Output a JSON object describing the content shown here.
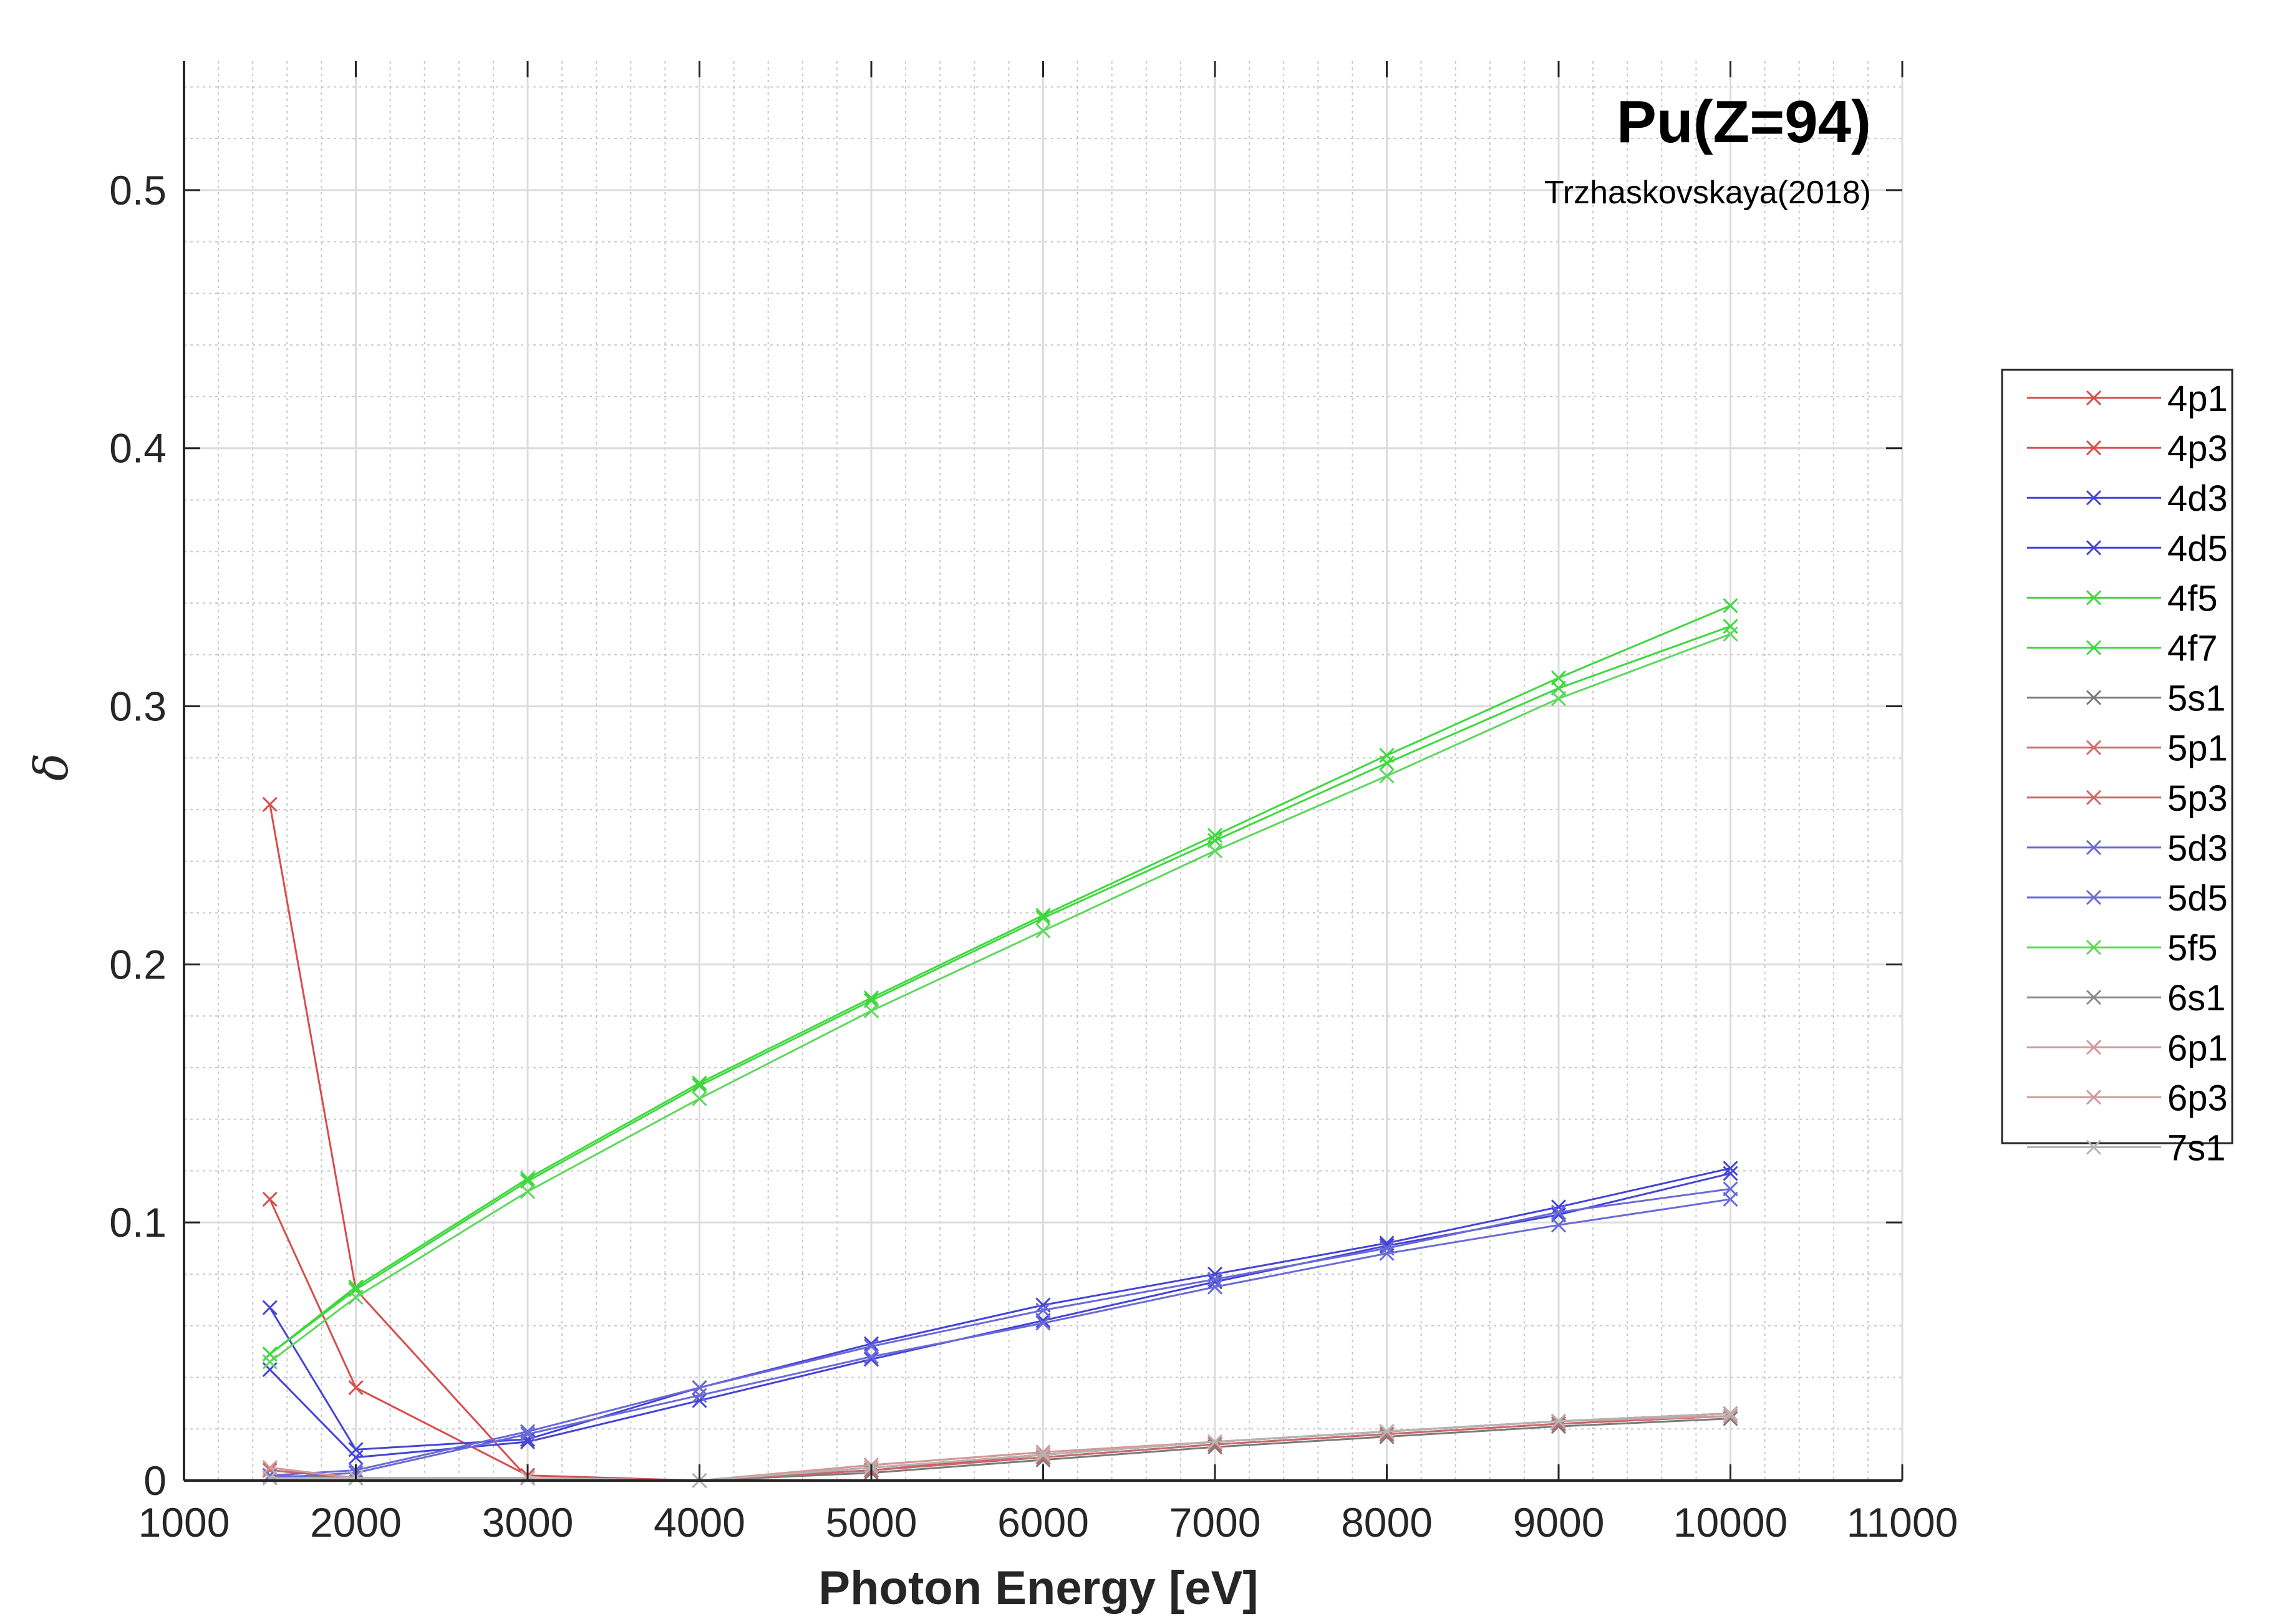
{
  "chart_data": {
    "type": "line",
    "title": "Pu(Z=94)",
    "subtitle": "Trzhaskovskaya(2018)",
    "xlabel": "Photon Energy [eV]",
    "ylabel": "δ",
    "xlim": [
      1000,
      11000
    ],
    "ylim": [
      0,
      0.55
    ],
    "xticks": [
      1000,
      2000,
      3000,
      4000,
      5000,
      6000,
      7000,
      8000,
      9000,
      10000,
      11000
    ],
    "yticks": [
      0,
      0.1,
      0.2,
      0.3,
      0.4,
      0.5
    ],
    "xtick_labels": [
      "1000",
      "2000",
      "3000",
      "4000",
      "5000",
      "6000",
      "7000",
      "8000",
      "9000",
      "10000",
      "11000"
    ],
    "ytick_labels": [
      "0",
      "0.1",
      "0.2",
      "0.3",
      "0.4",
      "0.5"
    ],
    "grid": true,
    "legend_position": "outside-right",
    "marker": "x",
    "x": [
      1500,
      2000,
      3000,
      4000,
      5000,
      6000,
      7000,
      8000,
      9000,
      10000
    ],
    "series": [
      {
        "name": "4p1",
        "color": "#d94c4c",
        "values": [
          0.262,
          0.074,
          0.001,
          0.0,
          0.004,
          0.01,
          0.015,
          0.019,
          0.023,
          0.026
        ]
      },
      {
        "name": "4p3",
        "color": "#d94c4c",
        "values": [
          0.109,
          0.036,
          0.002,
          0.0,
          0.005,
          0.01,
          0.015,
          0.019,
          0.023,
          0.026
        ]
      },
      {
        "name": "4d3",
        "color": "#4444d8",
        "values": [
          0.067,
          0.012,
          0.016,
          0.036,
          0.053,
          0.068,
          0.08,
          0.092,
          0.106,
          0.121
        ]
      },
      {
        "name": "4d5",
        "color": "#4444d8",
        "values": [
          0.043,
          0.009,
          0.015,
          0.031,
          0.047,
          0.062,
          0.077,
          0.091,
          0.103,
          0.119
        ]
      },
      {
        "name": "4f5",
        "color": "#3ed83e",
        "values": [
          0.049,
          0.075,
          0.117,
          0.154,
          0.187,
          0.219,
          0.25,
          0.281,
          0.311,
          0.339
        ]
      },
      {
        "name": "4f7",
        "color": "#3ed83e",
        "values": [
          0.049,
          0.074,
          0.116,
          0.153,
          0.186,
          0.218,
          0.248,
          0.278,
          0.307,
          0.331
        ]
      },
      {
        "name": "5s1",
        "color": "#7a7a7a",
        "values": [
          0.002,
          0.001,
          0.001,
          0.0,
          0.003,
          0.008,
          0.013,
          0.017,
          0.021,
          0.024
        ]
      },
      {
        "name": "5p1",
        "color": "#d66a6a",
        "values": [
          0.004,
          0.001,
          0.001,
          0.0,
          0.004,
          0.009,
          0.014,
          0.018,
          0.022,
          0.025
        ]
      },
      {
        "name": "5p3",
        "color": "#c86a6a",
        "values": [
          0.004,
          0.001,
          0.001,
          0.0,
          0.004,
          0.009,
          0.014,
          0.018,
          0.022,
          0.025
        ]
      },
      {
        "name": "5d3",
        "color": "#6a6ad8",
        "values": [
          0.002,
          0.004,
          0.019,
          0.036,
          0.052,
          0.066,
          0.078,
          0.09,
          0.104,
          0.113
        ]
      },
      {
        "name": "5d5",
        "color": "#6a6ad8",
        "values": [
          0.001,
          0.003,
          0.018,
          0.033,
          0.048,
          0.061,
          0.075,
          0.088,
          0.099,
          0.109
        ]
      },
      {
        "name": "5f5",
        "color": "#5cd85c",
        "values": [
          0.046,
          0.071,
          0.112,
          0.148,
          0.182,
          0.213,
          0.244,
          0.273,
          0.303,
          0.328
        ]
      },
      {
        "name": "6s1",
        "color": "#8a8a8a",
        "values": [
          0.001,
          0.001,
          0.001,
          0.0,
          0.005,
          0.01,
          0.015,
          0.019,
          0.023,
          0.026
        ]
      },
      {
        "name": "6p1",
        "color": "#d49898",
        "values": [
          0.005,
          0.001,
          0.001,
          0.0,
          0.006,
          0.011,
          0.015,
          0.019,
          0.023,
          0.025
        ]
      },
      {
        "name": "6p3",
        "color": "#d49898",
        "values": [
          0.005,
          0.001,
          0.001,
          0.0,
          0.006,
          0.011,
          0.015,
          0.019,
          0.023,
          0.025
        ]
      },
      {
        "name": "7s1",
        "color": "#b4b4b4",
        "values": [
          0.001,
          0.001,
          0.001,
          0.0,
          0.005,
          0.01,
          0.015,
          0.019,
          0.023,
          0.026
        ]
      }
    ]
  }
}
